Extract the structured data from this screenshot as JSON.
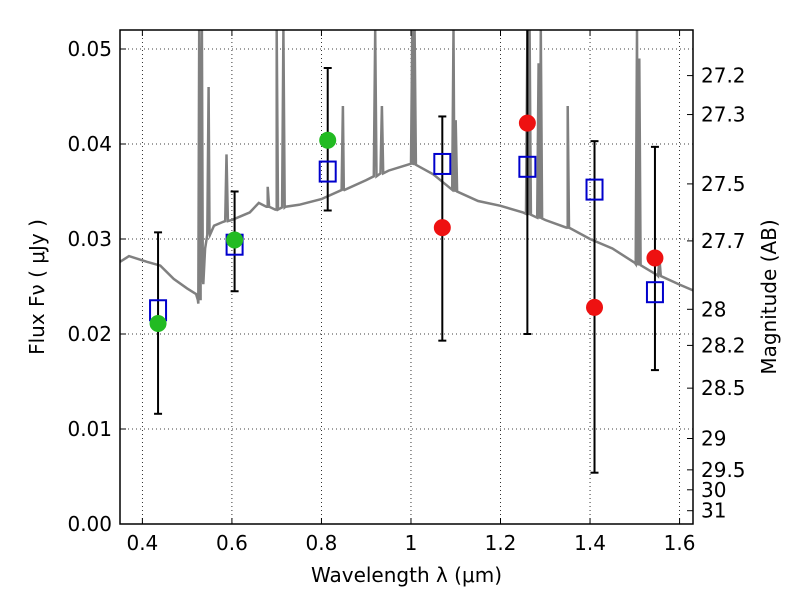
{
  "chart_data": {
    "type": "scatter",
    "xlabel": "Wavelength  λ (μm)",
    "ylabel": "Flux  Fν  ( μJy )",
    "y2label": "Magnitude (AB)",
    "xlim": [
      0.35,
      1.63
    ],
    "ylim": [
      0.0,
      0.052
    ],
    "grid": true,
    "x_ticks": [
      0.4,
      0.6,
      0.8,
      1.0,
      1.2,
      1.4,
      1.6
    ],
    "x_tick_labels": [
      "0.4",
      "0.6",
      "0.8",
      "1",
      "1.2",
      "1.4",
      "1.6"
    ],
    "y_ticks": [
      0.0,
      0.01,
      0.02,
      0.03,
      0.04,
      0.05
    ],
    "y_tick_labels": [
      "0.00",
      "0.01",
      "0.02",
      "0.03",
      "0.04",
      "0.05"
    ],
    "y2_ticks": [
      {
        "label": "27.2",
        "flux": 0.0472
      },
      {
        "label": "27.3",
        "flux": 0.0431
      },
      {
        "label": "27.5",
        "flux": 0.0358
      },
      {
        "label": "27.7",
        "flux": 0.0298
      },
      {
        "label": "28",
        "flux": 0.0226
      },
      {
        "label": "28.2",
        "flux": 0.0188
      },
      {
        "label": "28.5",
        "flux": 0.0143
      },
      {
        "label": "29",
        "flux": 0.009
      },
      {
        "label": "29.5",
        "flux": 0.0057
      },
      {
        "label": "30",
        "flux": 0.0036
      },
      {
        "label": "31",
        "flux": 0.0014
      }
    ],
    "series": [
      {
        "marker": "square",
        "color": "#0000cc",
        "points": [
          {
            "x": 0.435,
            "y": 0.0225,
            "yerr_low": 0.0116,
            "yerr_high": 0.0307
          },
          {
            "x": 0.606,
            "y": 0.0294,
            "yerr_low": 0.0245,
            "yerr_high": 0.035
          },
          {
            "x": 0.814,
            "y": 0.0371,
            "yerr_low": 0.033,
            "yerr_high": 0.048
          },
          {
            "x": 1.07,
            "y": 0.0379,
            "yerr_low": 0.0193,
            "yerr_high": 0.0429
          },
          {
            "x": 1.26,
            "y": 0.0376,
            "yerr_low": 0.02,
            "yerr_high": 0.052
          },
          {
            "x": 1.41,
            "y": 0.0352,
            "yerr_low": 0.0054,
            "yerr_high": 0.0403
          },
          {
            "x": 1.545,
            "y": 0.0244,
            "yerr_low": 0.0162,
            "yerr_high": 0.0397
          }
        ]
      },
      {
        "marker": "circle",
        "color": "#22bb22",
        "points": [
          {
            "x": 0.435,
            "y": 0.0211
          },
          {
            "x": 0.606,
            "y": 0.0299
          },
          {
            "x": 0.814,
            "y": 0.0404
          }
        ]
      },
      {
        "marker": "circle",
        "color": "#ee1111",
        "points": [
          {
            "x": 1.07,
            "y": 0.0312
          },
          {
            "x": 1.26,
            "y": 0.0422
          },
          {
            "x": 1.41,
            "y": 0.0228
          },
          {
            "x": 1.545,
            "y": 0.028
          }
        ]
      }
    ],
    "model_spectrum": {
      "color": "#808080",
      "x": [
        0.35,
        0.37,
        0.39,
        0.41,
        0.44,
        0.47,
        0.5,
        0.52,
        0.525,
        0.53,
        0.535,
        0.54,
        0.55,
        0.56,
        0.58,
        0.6,
        0.62,
        0.64,
        0.66,
        0.68,
        0.7,
        0.72,
        0.75,
        0.8,
        0.85,
        0.9,
        0.95,
        1.0,
        1.05,
        1.1,
        1.15,
        1.2,
        1.25,
        1.3,
        1.35,
        1.4,
        1.45,
        1.5,
        1.55,
        1.6,
        1.63
      ],
      "y": [
        0.0276,
        0.0282,
        0.0279,
        0.0276,
        0.0272,
        0.0258,
        0.0248,
        0.0242,
        0.0232,
        0.0241,
        0.026,
        0.029,
        0.0308,
        0.0314,
        0.0318,
        0.032,
        0.0324,
        0.0328,
        0.0338,
        0.0334,
        0.0331,
        0.0334,
        0.0336,
        0.0342,
        0.0352,
        0.0362,
        0.0372,
        0.038,
        0.0368,
        0.035,
        0.034,
        0.0335,
        0.0328,
        0.032,
        0.0312,
        0.03,
        0.029,
        0.0275,
        0.0262,
        0.0252,
        0.0246
      ],
      "peaks": [
        {
          "x": 0.527,
          "y": 0.052
        },
        {
          "x": 0.533,
          "y": 0.052
        },
        {
          "x": 0.548,
          "y": 0.046
        },
        {
          "x": 0.588,
          "y": 0.0389
        },
        {
          "x": 0.68,
          "y": 0.0355
        },
        {
          "x": 0.7,
          "y": 0.052
        },
        {
          "x": 0.715,
          "y": 0.052
        },
        {
          "x": 0.848,
          "y": 0.044
        },
        {
          "x": 0.92,
          "y": 0.052
        },
        {
          "x": 0.935,
          "y": 0.044
        },
        {
          "x": 1.003,
          "y": 0.052
        },
        {
          "x": 1.008,
          "y": 0.052
        },
        {
          "x": 1.095,
          "y": 0.052
        },
        {
          "x": 1.1,
          "y": 0.0425
        },
        {
          "x": 1.26,
          "y": 0.052
        },
        {
          "x": 1.265,
          "y": 0.052
        },
        {
          "x": 1.285,
          "y": 0.0485
        },
        {
          "x": 1.29,
          "y": 0.052
        },
        {
          "x": 1.35,
          "y": 0.044
        },
        {
          "x": 1.505,
          "y": 0.052
        },
        {
          "x": 1.51,
          "y": 0.049
        },
        {
          "x": 1.555,
          "y": 0.028
        }
      ]
    }
  }
}
